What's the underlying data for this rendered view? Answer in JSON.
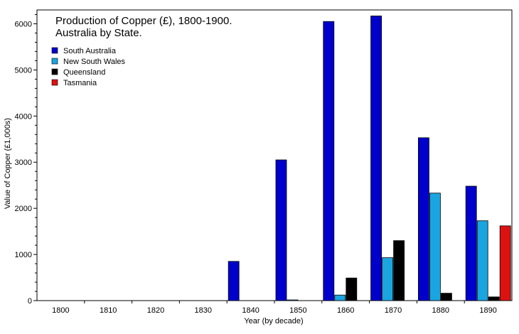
{
  "chart_data": {
    "type": "bar",
    "title": "Production of Copper (£), 1800-1900.",
    "subtitle": "Australia by State.",
    "xlabel": "Year (by decade)",
    "ylabel": "Value of Copper (£1,000s)",
    "ylim": [
      0,
      6300
    ],
    "yticks": [
      0,
      1000,
      2000,
      3000,
      4000,
      5000,
      6000
    ],
    "legend_position": "top-left",
    "grid": false,
    "categories": [
      "1800",
      "1810",
      "1820",
      "1830",
      "1840",
      "1850",
      "1860",
      "1870",
      "1880",
      "1890"
    ],
    "series": [
      {
        "name": "South Australia",
        "color": "#0000cc",
        "values": [
          0,
          0,
          0,
          0,
          850,
          3050,
          6050,
          6170,
          3530,
          2480
        ]
      },
      {
        "name": "New South Wales",
        "color": "#1aa5e0",
        "values": [
          0,
          0,
          0,
          0,
          0,
          15,
          120,
          930,
          2330,
          1730
        ]
      },
      {
        "name": "Queensland",
        "color": "#000000",
        "values": [
          0,
          0,
          0,
          0,
          0,
          0,
          490,
          1300,
          160,
          80
        ]
      },
      {
        "name": "Tasmania",
        "color": "#dd1111",
        "values": [
          0,
          0,
          0,
          0,
          0,
          0,
          0,
          0,
          0,
          1620
        ]
      }
    ]
  }
}
